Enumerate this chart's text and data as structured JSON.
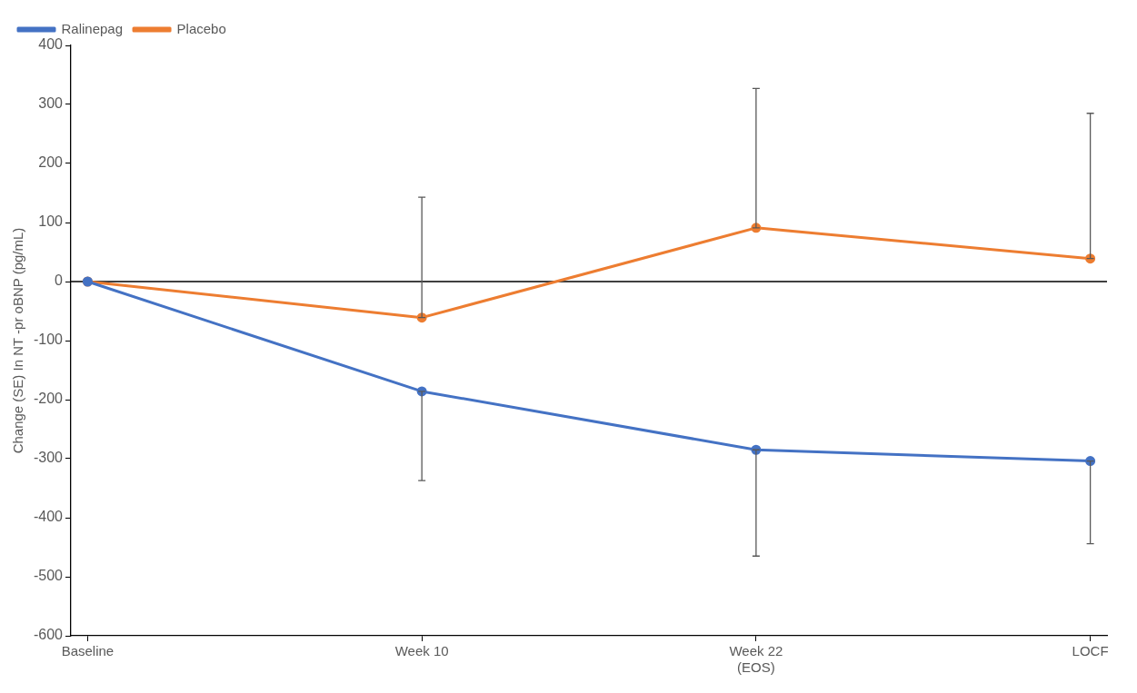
{
  "chart_data": {
    "type": "line",
    "ylabel": "Change (SE) In NT -pr oBNP (pg/mL)",
    "categories": [
      "Baseline",
      "Week 10",
      "Week 22\n(EOS)",
      "LOCF"
    ],
    "ylim": [
      -600,
      400
    ],
    "yticks": [
      -600,
      -500,
      -400,
      -300,
      -200,
      -100,
      0,
      100,
      200,
      300,
      400
    ],
    "series": [
      {
        "name": "Ralinepag",
        "color": "#4472c4",
        "values": [
          0,
          -186,
          -285,
          -304
        ],
        "errors": [
          null,
          [
            -337,
            -186
          ],
          [
            -465,
            -285
          ],
          [
            -444,
            -304
          ]
        ]
      },
      {
        "name": "Placebo",
        "color": "#ed7d31",
        "values": [
          0,
          -61,
          91,
          39
        ],
        "errors": [
          null,
          [
            -61,
            143
          ],
          [
            91,
            327
          ],
          [
            39,
            285
          ]
        ]
      }
    ],
    "ref_lines": [
      {
        "axis": "y",
        "value": 0,
        "color": "#000000"
      }
    ],
    "marker": "circle",
    "line_style": "solid",
    "grid": false,
    "legend": "top left"
  }
}
